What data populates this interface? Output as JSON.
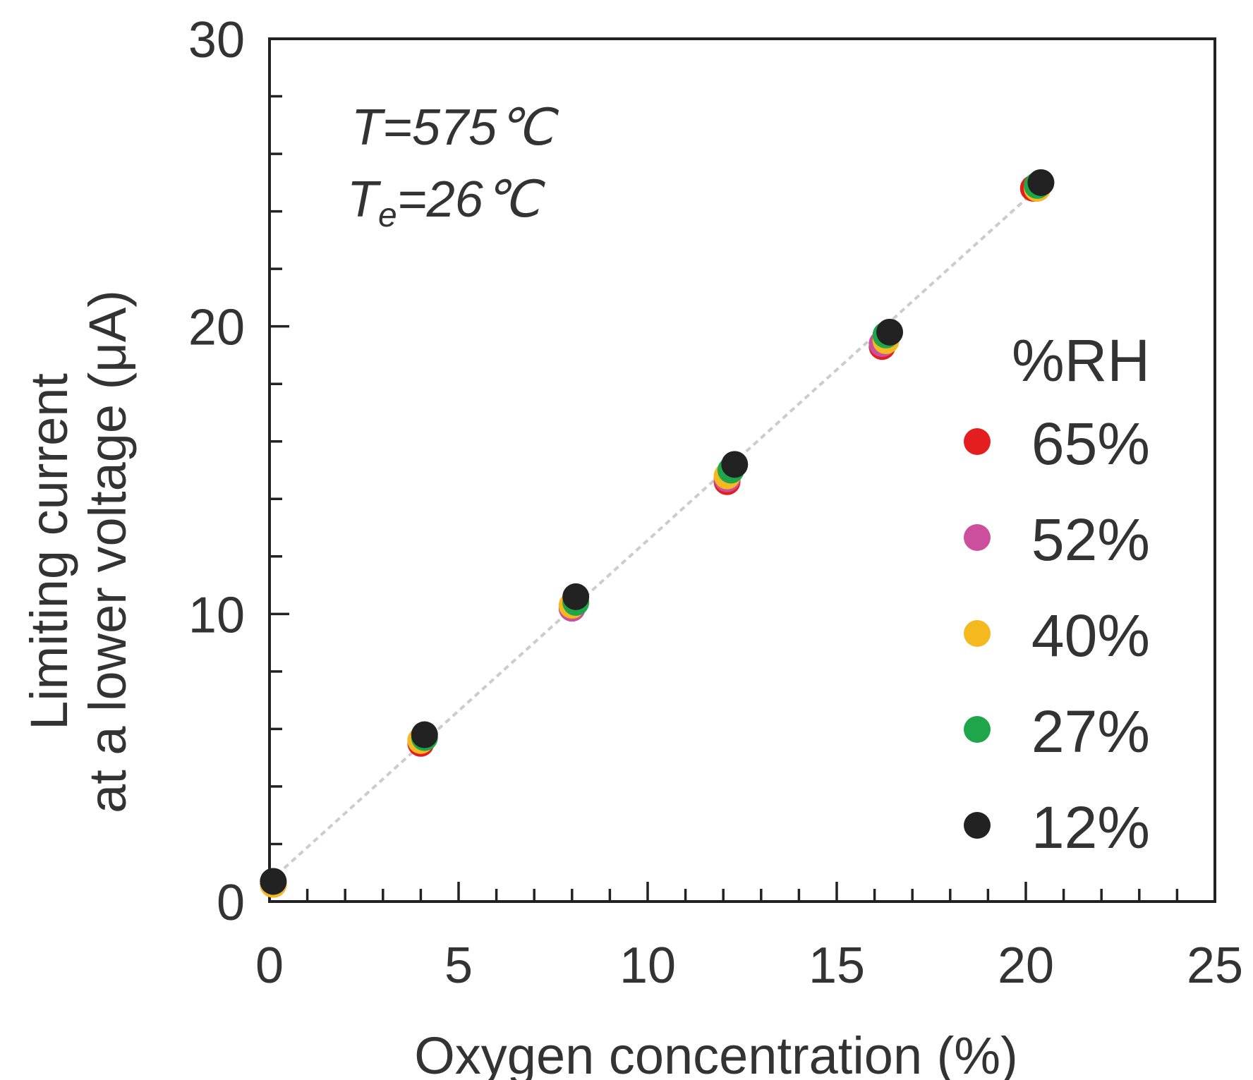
{
  "chart_data": {
    "type": "scatter",
    "xlabel": "Oxygen concentration (%)",
    "ylabel_line1": "Limiting current",
    "ylabel_line2": "at a lower voltage (μA)",
    "xlim": [
      0,
      25
    ],
    "ylim": [
      0,
      30
    ],
    "x_ticks": [
      "0",
      "5",
      "10",
      "15",
      "20",
      "25"
    ],
    "y_ticks": [
      "0",
      "10",
      "20",
      "30"
    ],
    "grid": false,
    "legend_position": "right",
    "legend_title": "%RH",
    "annotation": {
      "line1": "T=575℃",
      "line2_main": "T",
      "line2_sub": "e",
      "line2_rest": "=26℃"
    },
    "fit_line": {
      "x": [
        0,
        20.4
      ],
      "y": [
        0.7,
        24.9
      ],
      "color": "#cccccc"
    },
    "series": [
      {
        "name": "65%",
        "color": "#e41e1e",
        "x": [
          0.1,
          4.0,
          8.0,
          12.1,
          16.2,
          20.2
        ],
        "y": [
          0.6,
          5.5,
          10.2,
          14.6,
          19.3,
          24.8
        ]
      },
      {
        "name": "52%",
        "color": "#cc4f9e",
        "x": [
          0.1,
          4.0,
          8.0,
          12.1,
          16.2,
          20.3
        ],
        "y": [
          0.6,
          5.6,
          10.2,
          14.7,
          19.4,
          24.8
        ]
      },
      {
        "name": "40%",
        "color": "#f5b920",
        "x": [
          0.1,
          4.0,
          8.0,
          12.1,
          16.3,
          20.3
        ],
        "y": [
          0.6,
          5.6,
          10.3,
          14.8,
          19.5,
          24.8
        ]
      },
      {
        "name": "27%",
        "color": "#1fa64b",
        "x": [
          0.1,
          4.1,
          8.1,
          12.2,
          16.3,
          20.3
        ],
        "y": [
          0.7,
          5.7,
          10.4,
          15.0,
          19.7,
          24.9
        ]
      },
      {
        "name": "12%",
        "color": "#222222",
        "x": [
          0.1,
          4.1,
          8.1,
          12.3,
          16.4,
          20.4
        ],
        "y": [
          0.7,
          5.8,
          10.6,
          15.2,
          19.8,
          25.0
        ]
      }
    ]
  }
}
